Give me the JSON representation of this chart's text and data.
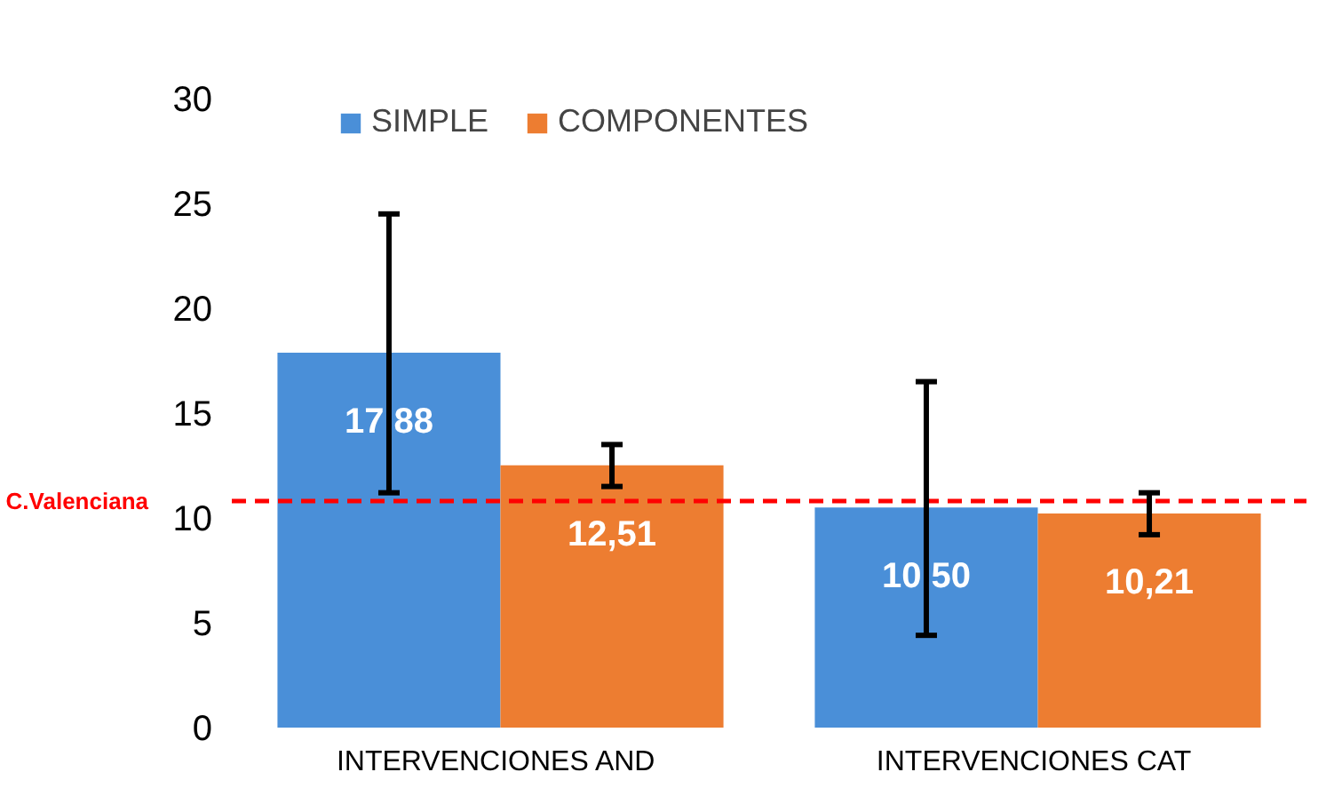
{
  "chart_data": {
    "type": "bar",
    "categories": [
      "INTERVENCIONES  AND",
      "INTERVENCIONES  CAT"
    ],
    "series": [
      {
        "name": "SIMPLE",
        "color": "#4a8fd8",
        "values": [
          17.88,
          10.5
        ],
        "value_labels": [
          "17,88",
          "10,50"
        ],
        "errors": [
          [
            11.2,
            24.5
          ],
          [
            4.4,
            16.5
          ]
        ]
      },
      {
        "name": "COMPONENTES",
        "color": "#ed7d31",
        "values": [
          12.51,
          10.21
        ],
        "value_labels": [
          "12,51",
          "10,21"
        ],
        "errors": [
          [
            11.5,
            13.5
          ],
          [
            9.2,
            11.2
          ]
        ]
      }
    ],
    "ylim": [
      0,
      30
    ],
    "yticks": [
      0,
      5,
      10,
      15,
      20,
      25,
      30
    ],
    "grid": false,
    "legend": "top",
    "ref_lines": [
      {
        "axis": "y",
        "value": 10.8,
        "label": "C.Valenciana",
        "color": "#ff0000",
        "line_style": "dashed"
      }
    ]
  }
}
